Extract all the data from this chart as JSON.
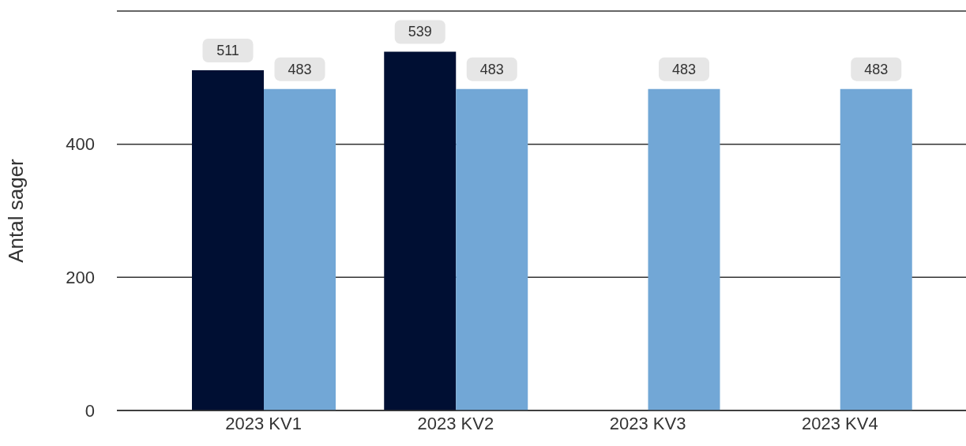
{
  "chart_data": {
    "type": "bar",
    "ylabel": "Antal sager",
    "categories": [
      "2023 KV1",
      "2023 KV2",
      "2023 KV3",
      "2023 KV4"
    ],
    "series": [
      {
        "color": "#000f33",
        "values": [
          511,
          539,
          null,
          null
        ]
      },
      {
        "color": "#72a7d6",
        "values": [
          483,
          483,
          483,
          483
        ]
      }
    ],
    "ylim": [
      0,
      600
    ],
    "yticks": [
      0,
      200,
      400
    ],
    "grid": "y",
    "legend": false,
    "data_labels": true
  }
}
